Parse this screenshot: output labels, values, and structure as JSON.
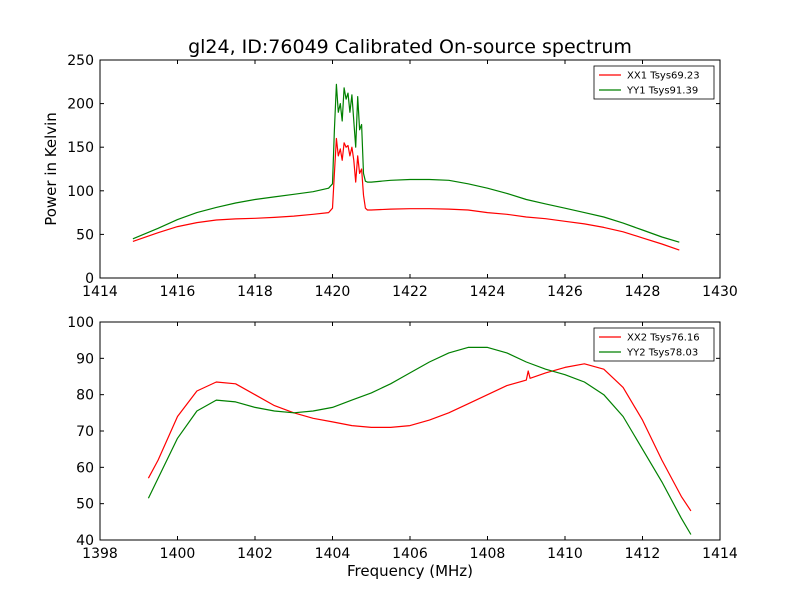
{
  "figure": {
    "title": "gl24, ID:76049 Calibrated On-source spectrum"
  },
  "chart_data": [
    {
      "type": "line",
      "title": "gl24, ID:76049 Calibrated On-source spectrum",
      "xlabel": "",
      "ylabel": "Power in Kelvin",
      "xlim": [
        1414,
        1430
      ],
      "ylim": [
        0,
        250
      ],
      "xticks": [
        1414,
        1416,
        1418,
        1420,
        1422,
        1424,
        1426,
        1428,
        1430
      ],
      "yticks": [
        0,
        50,
        100,
        150,
        200,
        250
      ],
      "grid": false,
      "legend_position": "top-right",
      "series": [
        {
          "name": "XX1 Tsys69.23",
          "color": "#ff0000",
          "x": [
            1414.85,
            1415.5,
            1416,
            1416.5,
            1417,
            1417.5,
            1418,
            1418.5,
            1419,
            1419.5,
            1419.9,
            1420.0,
            1420.05,
            1420.1,
            1420.15,
            1420.2,
            1420.25,
            1420.3,
            1420.35,
            1420.4,
            1420.45,
            1420.5,
            1420.55,
            1420.6,
            1420.65,
            1420.7,
            1420.75,
            1420.8,
            1420.85,
            1420.9,
            1421.0,
            1421.5,
            1422,
            1422.5,
            1423,
            1423.5,
            1424,
            1424.5,
            1425,
            1425.5,
            1426,
            1426.5,
            1427,
            1427.5,
            1428,
            1428.5,
            1428.95
          ],
          "values": [
            42,
            52,
            59,
            63.5,
            66.5,
            67.8,
            68.5,
            69.5,
            71,
            73,
            75,
            80,
            120,
            160,
            140,
            148,
            135,
            155,
            150,
            152,
            140,
            150,
            135,
            110,
            140,
            120,
            125,
            95,
            80,
            78,
            78,
            79,
            79.5,
            79.5,
            79,
            78,
            75,
            73,
            70,
            68,
            65,
            62,
            58,
            53,
            46,
            39,
            32
          ]
        },
        {
          "name": "YY1 Tsys91.39",
          "color": "#008000",
          "x": [
            1414.85,
            1415.5,
            1416,
            1416.5,
            1417,
            1417.5,
            1418,
            1418.5,
            1419,
            1419.5,
            1419.9,
            1420.0,
            1420.05,
            1420.1,
            1420.15,
            1420.2,
            1420.25,
            1420.3,
            1420.35,
            1420.4,
            1420.45,
            1420.5,
            1420.55,
            1420.6,
            1420.65,
            1420.7,
            1420.75,
            1420.8,
            1420.85,
            1420.9,
            1421.0,
            1421.5,
            1422,
            1422.5,
            1423,
            1423.5,
            1424,
            1424.5,
            1425,
            1425.5,
            1426,
            1426.5,
            1427,
            1427.5,
            1428,
            1428.5,
            1428.95
          ],
          "values": [
            45,
            57,
            67,
            75,
            81,
            86,
            90,
            93,
            96,
            99,
            103,
            108,
            170,
            222,
            190,
            200,
            180,
            218,
            205,
            212,
            190,
            210,
            180,
            150,
            208,
            170,
            176,
            120,
            111,
            110,
            110,
            112,
            113,
            113,
            112,
            108,
            103,
            97,
            90,
            85,
            80,
            75,
            70,
            63,
            55,
            47,
            41
          ]
        }
      ]
    },
    {
      "type": "line",
      "title": "",
      "xlabel": "Frequency (MHz)",
      "ylabel": "",
      "xlim": [
        1398,
        1414
      ],
      "ylim": [
        40,
        100
      ],
      "xticks": [
        1398,
        1400,
        1402,
        1404,
        1406,
        1408,
        1410,
        1412,
        1414
      ],
      "yticks": [
        40,
        50,
        60,
        70,
        80,
        90,
        100
      ],
      "grid": false,
      "legend_position": "top-right",
      "series": [
        {
          "name": "XX2 Tsys76.16",
          "color": "#ff0000",
          "x": [
            1399.25,
            1399.5,
            1400,
            1400.5,
            1401,
            1401.5,
            1402,
            1402.5,
            1403,
            1403.5,
            1404,
            1404.5,
            1405,
            1405.5,
            1406,
            1406.5,
            1407,
            1407.5,
            1408,
            1408.5,
            1409,
            1409.05,
            1409.1,
            1409.5,
            1410,
            1410.5,
            1411,
            1411.5,
            1412,
            1412.5,
            1413,
            1413.25
          ],
          "values": [
            57,
            62,
            74,
            81,
            83.5,
            83,
            80,
            77,
            75,
            73.5,
            72.5,
            71.5,
            71,
            71,
            71.5,
            73,
            75,
            77.5,
            80,
            82.5,
            84,
            86.5,
            84.5,
            86,
            87.5,
            88.5,
            87,
            82,
            73,
            62,
            52,
            48
          ]
        },
        {
          "name": "YY2 Tsys78.03",
          "color": "#008000",
          "x": [
            1399.25,
            1399.5,
            1400,
            1400.5,
            1401,
            1401.5,
            1402,
            1402.5,
            1403,
            1403.5,
            1404,
            1404.5,
            1405,
            1405.5,
            1406,
            1406.5,
            1407,
            1407.5,
            1408,
            1408.5,
            1409,
            1409.5,
            1410,
            1410.5,
            1411,
            1411.5,
            1412,
            1412.5,
            1413,
            1413.25
          ],
          "values": [
            51.5,
            57,
            68,
            75.5,
            78.5,
            78,
            76.5,
            75.5,
            75,
            75.5,
            76.5,
            78.5,
            80.5,
            83,
            86,
            89,
            91.5,
            93,
            93,
            91.5,
            89,
            87,
            85.5,
            83.5,
            80,
            74,
            65,
            56,
            46,
            41.5
          ]
        }
      ]
    }
  ]
}
